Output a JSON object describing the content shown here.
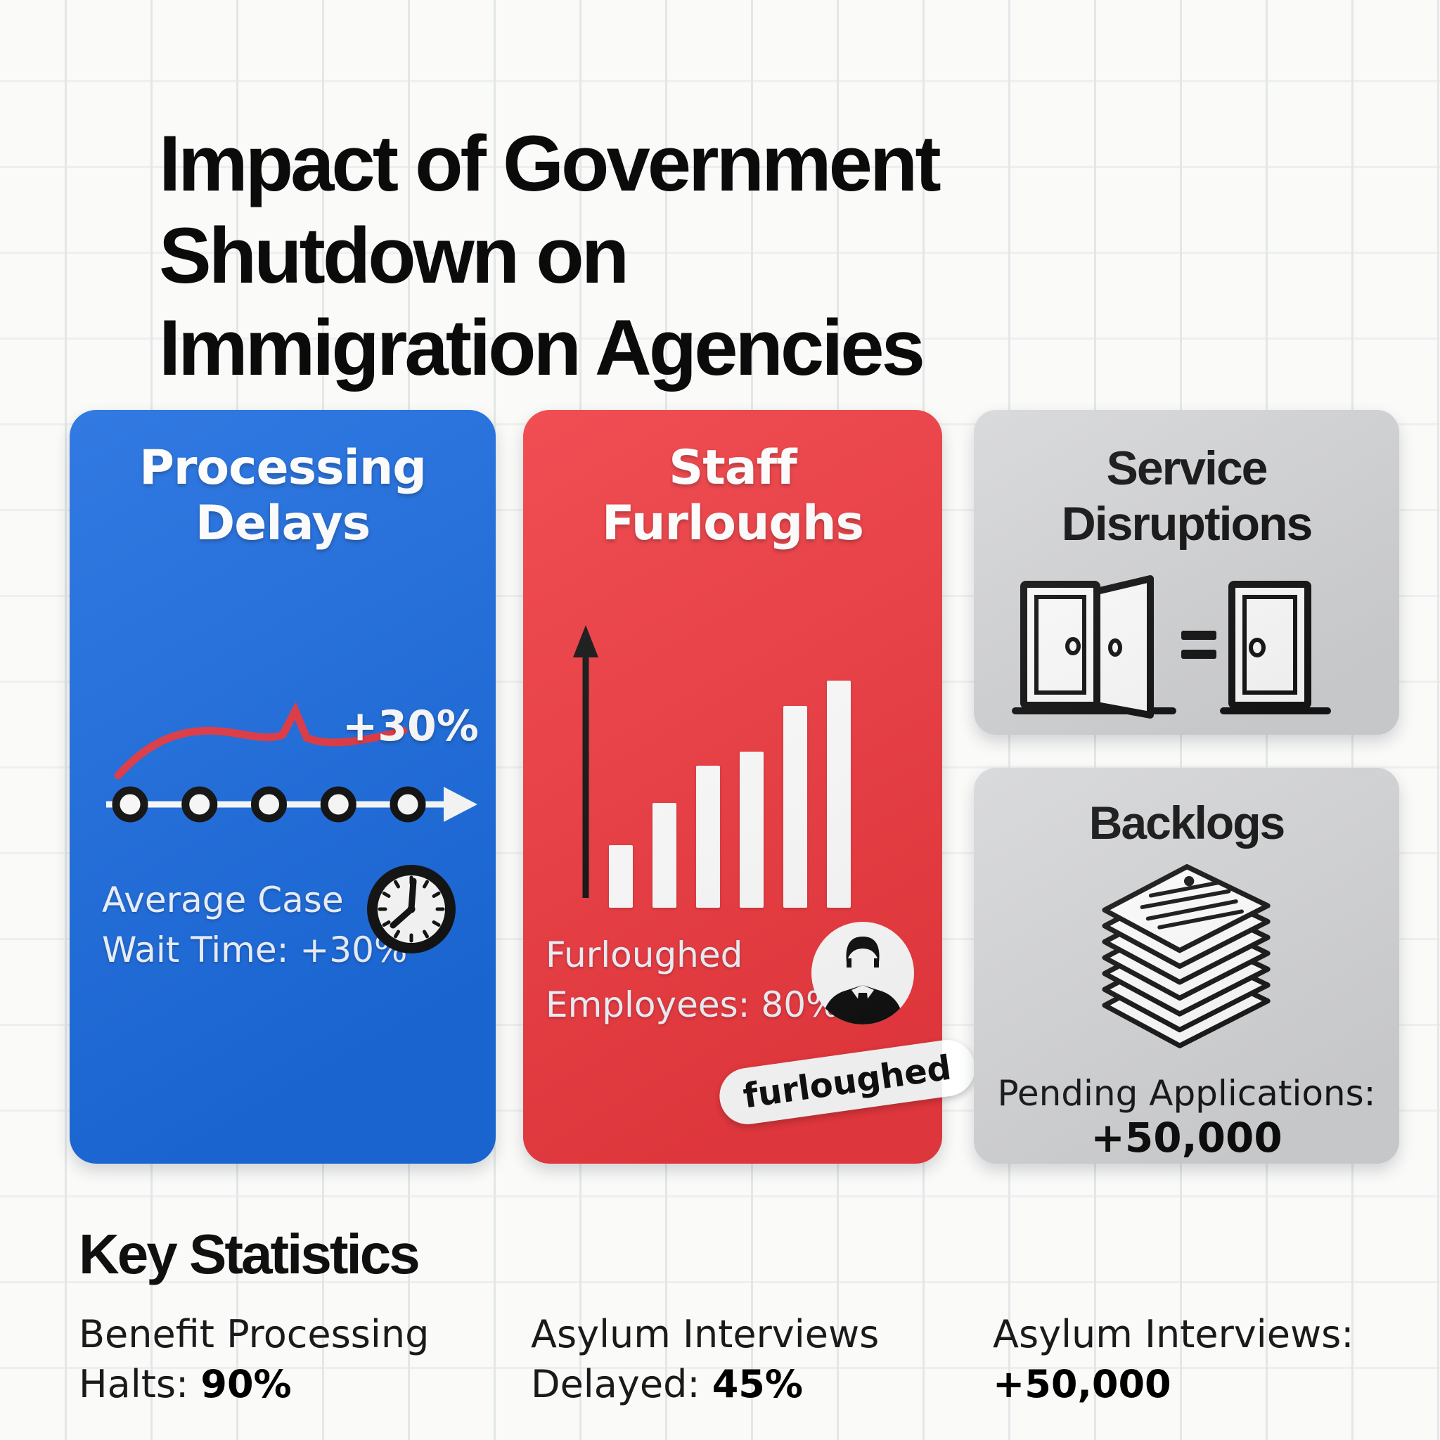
{
  "page": {
    "title_lines": [
      "Impact of Government",
      "Shutdown on",
      "Immigration Agencies"
    ]
  },
  "colors": {
    "blue": "#1b6bdf",
    "red": "#ee3a40",
    "gray": "#d5d6d8",
    "ink": "#111111",
    "redline": "#e23641"
  },
  "cards": {
    "processing": {
      "title_lines": [
        "Processing",
        "Delays"
      ],
      "annotation": "+30%",
      "caption_lines": [
        "Average Case",
        "Wait Time: +30%"
      ],
      "timeline_dots": 5,
      "icon": "clock-icon"
    },
    "furloughs": {
      "title_lines": [
        "Staff",
        "Furloughs"
      ],
      "caption_lines": [
        "Furloughed",
        "Employees: 80%"
      ],
      "tag": "furloughed",
      "bars": [
        89,
        149,
        202,
        222,
        287,
        323
      ],
      "icon": "person-icon"
    },
    "disruptions": {
      "title_lines": [
        "Service",
        "Disruptions"
      ],
      "icon": "doors-icon"
    },
    "backlogs": {
      "title": "Backlogs",
      "caption": "Pending Applications:",
      "value": "+50,000",
      "icon": "paper-stack-icon"
    }
  },
  "key_statistics": {
    "heading": "Key Statistics",
    "stats": [
      {
        "label": "Benefit Processing",
        "prefix": "Halts: ",
        "value": "90%"
      },
      {
        "label": "Asylum Interviews",
        "prefix": "Delayed: ",
        "value": "45%"
      },
      {
        "label": "Asylum Interviews:",
        "prefix": "",
        "value": "+50,000"
      }
    ]
  }
}
